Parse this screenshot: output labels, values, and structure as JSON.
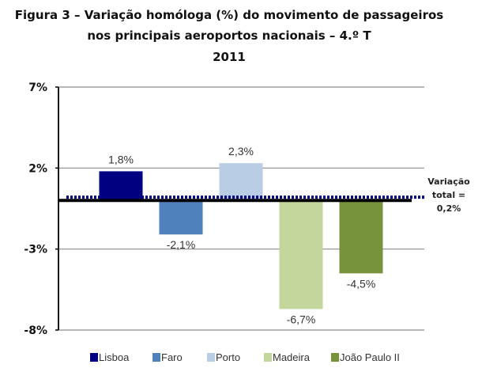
{
  "chart_data": {
    "type": "bar",
    "title_lines": [
      "Figura 3 – Variação homóloga (%) do movimento de passageiros",
      "nos principais aeroportos nacionais – 4.º T",
      "2011"
    ],
    "categories": [
      "Lisboa",
      "Faro",
      "Porto",
      "Madeira",
      "João Paulo II"
    ],
    "values": [
      1.8,
      -2.1,
      2.3,
      -6.7,
      -4.5
    ],
    "data_labels": [
      "1,8%",
      "-2,1%",
      "2,3%",
      "-6,7%",
      "-4,5%"
    ],
    "colors": [
      "#000080",
      "#4f81bd",
      "#b9cde5",
      "#c3d69b",
      "#77933c"
    ],
    "ylim": [
      -8,
      7
    ],
    "yticks": [
      7,
      2,
      -3,
      -8
    ],
    "ytick_labels": [
      "7%",
      "2%",
      "-3%",
      "-8%"
    ],
    "grid": true,
    "legend": "bottom",
    "reference_line": {
      "value": 0.2,
      "label_lines": [
        "Variação",
        "total =",
        "0,2%"
      ],
      "color": "#000080",
      "style": "dotted"
    }
  }
}
